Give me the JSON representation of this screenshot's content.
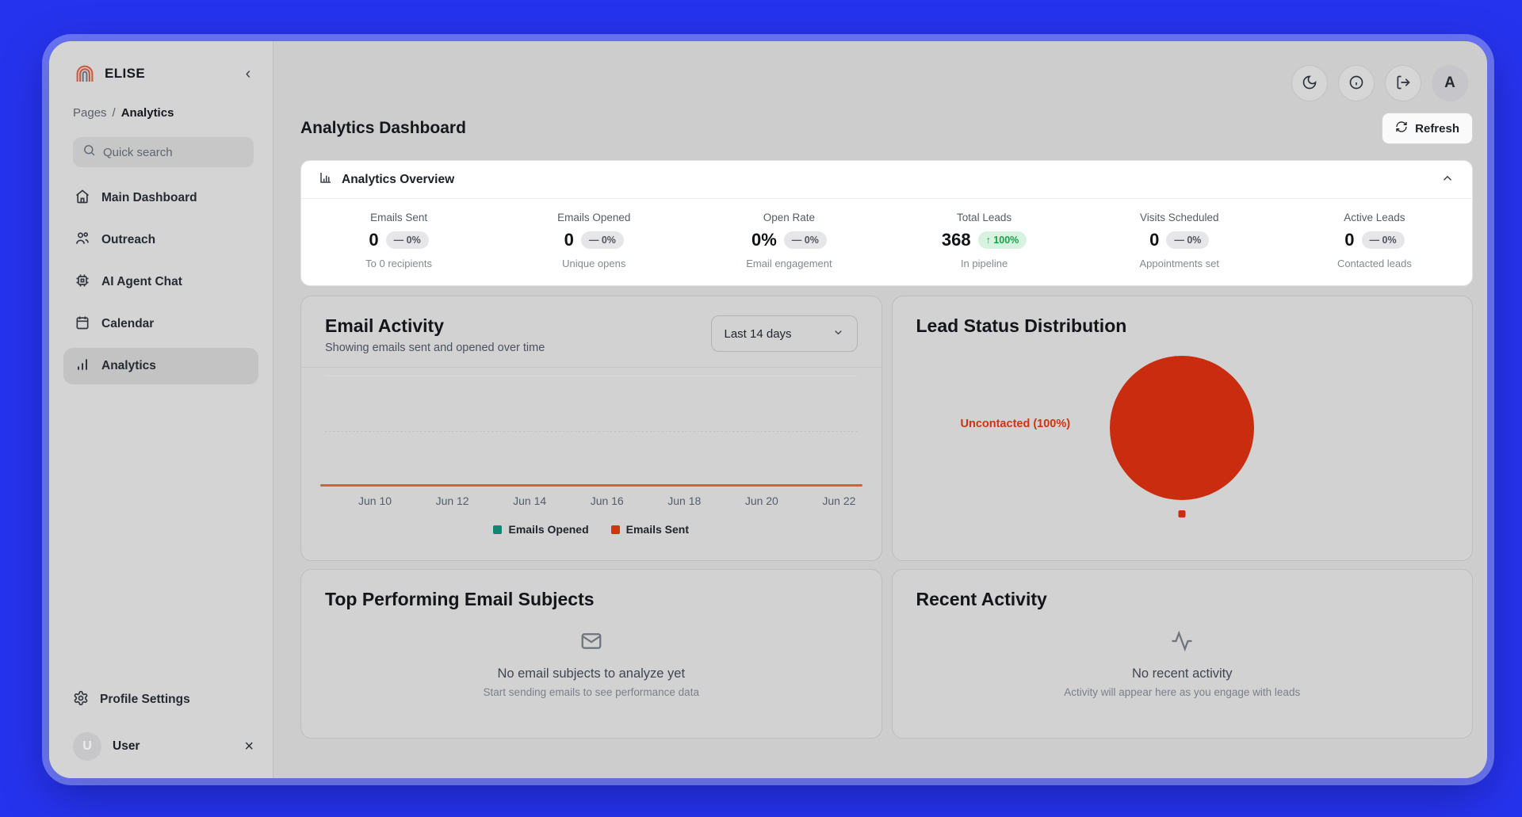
{
  "app": {
    "name": "ELISE"
  },
  "sidebar": {
    "breadcrumb": {
      "parent": "Pages",
      "separator": "/",
      "current": "Analytics"
    },
    "search": {
      "placeholder": "Quick search"
    },
    "nav": [
      {
        "label": "Main Dashboard",
        "icon": "home-icon",
        "active": false
      },
      {
        "label": "Outreach",
        "icon": "users-icon",
        "active": false
      },
      {
        "label": "AI Agent Chat",
        "icon": "cpu-icon",
        "active": false
      },
      {
        "label": "Calendar",
        "icon": "calendar-icon",
        "active": false
      },
      {
        "label": "Analytics",
        "icon": "bar-chart-icon",
        "active": true
      }
    ],
    "footer": {
      "settings_label": "Profile Settings",
      "user": {
        "initial": "U",
        "name": "User"
      }
    }
  },
  "topbar": {
    "icons": [
      "moon-icon",
      "info-icon",
      "logout-icon"
    ],
    "avatar_initial": "A"
  },
  "header": {
    "title": "Analytics Dashboard",
    "refresh_label": "Refresh"
  },
  "overview": {
    "title": "Analytics Overview",
    "stats": [
      {
        "label": "Emails Sent",
        "value": "0",
        "badge_prefix": "—",
        "badge": "0%",
        "trend": "flat",
        "sublabel": "To 0 recipients"
      },
      {
        "label": "Emails Opened",
        "value": "0",
        "badge_prefix": "—",
        "badge": "0%",
        "trend": "flat",
        "sublabel": "Unique opens"
      },
      {
        "label": "Open Rate",
        "value": "0%",
        "badge_prefix": "—",
        "badge": "0%",
        "trend": "flat",
        "sublabel": "Email engagement"
      },
      {
        "label": "Total Leads",
        "value": "368",
        "badge_prefix": "↑",
        "badge": "100%",
        "trend": "up",
        "sublabel": "In pipeline"
      },
      {
        "label": "Visits Scheduled",
        "value": "0",
        "badge_prefix": "—",
        "badge": "0%",
        "trend": "flat",
        "sublabel": "Appointments set"
      },
      {
        "label": "Active Leads",
        "value": "0",
        "badge_prefix": "—",
        "badge": "0%",
        "trend": "flat",
        "sublabel": "Contacted leads"
      }
    ]
  },
  "email_activity": {
    "title": "Email Activity",
    "subtitle": "Showing emails sent and opened over time",
    "range_selector": "Last 14 days"
  },
  "lead_status": {
    "title": "Lead Status Distribution",
    "slice_label": "Uncontacted (100%)"
  },
  "top_subjects": {
    "title": "Top Performing Email Subjects",
    "empty_title": "No email subjects to analyze yet",
    "empty_subtitle": "Start sending emails to see performance data"
  },
  "recent_activity": {
    "title": "Recent Activity",
    "empty_title": "No recent activity",
    "empty_subtitle": "Activity will appear here as you engage with leads"
  },
  "chart_data": [
    {
      "type": "line",
      "title": "Email Activity",
      "range": "Last 14 days",
      "x": [
        "Jun 10",
        "Jun 12",
        "Jun 14",
        "Jun 16",
        "Jun 18",
        "Jun 20",
        "Jun 22"
      ],
      "series": [
        {
          "name": "Emails Opened",
          "color": "#0e8873",
          "values": [
            0,
            0,
            0,
            0,
            0,
            0,
            0
          ]
        },
        {
          "name": "Emails Sent",
          "color": "#d1350f",
          "values": [
            0,
            0,
            0,
            0,
            0,
            0,
            0
          ]
        }
      ],
      "ylim": [
        0,
        1
      ],
      "grid": "horizontal",
      "legend_position": "bottom",
      "zero_line_color": "#dc5c33"
    },
    {
      "type": "pie",
      "title": "Lead Status Distribution",
      "slices": [
        {
          "label": "Uncontacted",
          "value": 100,
          "color": "#c92c0e"
        }
      ],
      "label_color": "#cf3312",
      "legend_position": "bottom"
    }
  ],
  "colors": {
    "frame_blue": "#2633ee",
    "badge_green_text": "#15a24a",
    "badge_green_bg": "#d7f3e0",
    "pie_red": "#c92c0e"
  }
}
